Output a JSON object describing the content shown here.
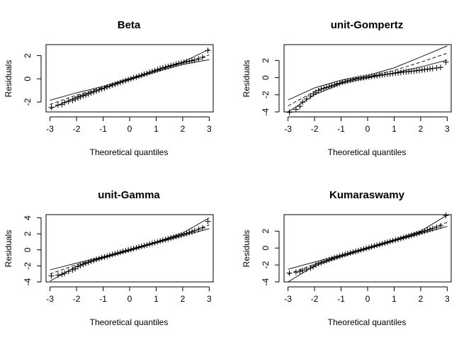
{
  "chart_data": [
    {
      "type": "scatter",
      "title": "Beta",
      "xlabel": "Theoretical quantiles",
      "ylabel": "Residuals",
      "xlim": [
        -3.15,
        3.15
      ],
      "ylim": [
        -2.85,
        2.95
      ],
      "xticks": [
        -3,
        -2,
        -1,
        0,
        1,
        2,
        3
      ],
      "yticks": [
        -2,
        0,
        2
      ],
      "marker": "+",
      "points": [
        [
          -2.95,
          -2.45
        ],
        [
          -2.7,
          -2.25
        ],
        [
          -2.55,
          -2.2
        ],
        [
          -2.45,
          -2.05
        ],
        [
          -2.3,
          -1.95
        ],
        [
          -2.15,
          -1.85
        ],
        [
          -2.05,
          -1.75
        ],
        [
          -1.95,
          -1.65
        ],
        [
          -1.85,
          -1.55
        ],
        [
          -1.75,
          -1.45
        ],
        [
          -1.65,
          -1.4
        ],
        [
          -1.55,
          -1.3
        ],
        [
          -1.45,
          -1.2
        ],
        [
          -1.35,
          -1.12
        ],
        [
          -1.25,
          -1.03
        ],
        [
          -1.15,
          -0.95
        ],
        [
          -1.05,
          -0.87
        ],
        [
          -0.95,
          -0.8
        ],
        [
          -0.85,
          -0.71
        ],
        [
          -0.75,
          -0.63
        ],
        [
          -0.65,
          -0.55
        ],
        [
          -0.55,
          -0.47
        ],
        [
          -0.45,
          -0.39
        ],
        [
          -0.35,
          -0.31
        ],
        [
          -0.25,
          -0.23
        ],
        [
          -0.15,
          -0.15
        ],
        [
          -0.05,
          -0.07
        ],
        [
          0.05,
          0.01
        ],
        [
          0.15,
          0.09
        ],
        [
          0.25,
          0.16
        ],
        [
          0.35,
          0.24
        ],
        [
          0.45,
          0.32
        ],
        [
          0.55,
          0.4
        ],
        [
          0.65,
          0.47
        ],
        [
          0.75,
          0.55
        ],
        [
          0.85,
          0.63
        ],
        [
          0.95,
          0.71
        ],
        [
          1.05,
          0.79
        ],
        [
          1.15,
          0.87
        ],
        [
          1.25,
          0.94
        ],
        [
          1.35,
          1.0
        ],
        [
          1.45,
          1.07
        ],
        [
          1.55,
          1.14
        ],
        [
          1.65,
          1.2
        ],
        [
          1.75,
          1.27
        ],
        [
          1.85,
          1.33
        ],
        [
          1.95,
          1.38
        ],
        [
          2.05,
          1.43
        ],
        [
          2.15,
          1.48
        ],
        [
          2.25,
          1.52
        ],
        [
          2.35,
          1.56
        ],
        [
          2.45,
          1.6
        ],
        [
          2.6,
          1.7
        ],
        [
          2.75,
          1.85
        ],
        [
          2.95,
          2.45
        ]
      ],
      "envelope": {
        "upper": [
          [
            -3.0,
            -1.85
          ],
          [
            -2.0,
            -1.2
          ],
          [
            -1.0,
            -0.65
          ],
          [
            0.0,
            0.05
          ],
          [
            1.0,
            0.75
          ],
          [
            2.0,
            1.45
          ],
          [
            3.0,
            2.55
          ]
        ],
        "lower": [
          [
            -3.0,
            -2.6
          ],
          [
            -2.0,
            -1.55
          ],
          [
            -1.0,
            -0.8
          ],
          [
            0.0,
            -0.1
          ],
          [
            1.0,
            0.6
          ],
          [
            2.0,
            1.25
          ],
          [
            3.0,
            1.65
          ]
        ],
        "median": [
          [
            -3.0,
            -2.2
          ],
          [
            -2.0,
            -1.4
          ],
          [
            -1.0,
            -0.72
          ],
          [
            0.0,
            -0.02
          ],
          [
            1.0,
            0.68
          ],
          [
            2.0,
            1.36
          ],
          [
            3.0,
            2.05
          ]
        ]
      }
    },
    {
      "type": "scatter",
      "title": "unit-Gompertz",
      "xlabel": "Theoretical quantiles",
      "ylabel": "Residuals",
      "xlim": [
        -3.15,
        3.15
      ],
      "ylim": [
        -4.0,
        3.85
      ],
      "xticks": [
        -3,
        -2,
        -1,
        0,
        1,
        2,
        3
      ],
      "yticks": [
        -4,
        -2,
        0,
        2
      ],
      "marker": "+",
      "points": [
        [
          -2.95,
          -4.05
        ],
        [
          -2.7,
          -3.7
        ],
        [
          -2.55,
          -3.35
        ],
        [
          -2.45,
          -2.85
        ],
        [
          -2.3,
          -2.5
        ],
        [
          -2.15,
          -2.15
        ],
        [
          -2.05,
          -1.9
        ],
        [
          -1.95,
          -1.7
        ],
        [
          -1.85,
          -1.5
        ],
        [
          -1.75,
          -1.35
        ],
        [
          -1.65,
          -1.25
        ],
        [
          -1.55,
          -1.15
        ],
        [
          -1.45,
          -1.05
        ],
        [
          -1.35,
          -0.95
        ],
        [
          -1.25,
          -0.85
        ],
        [
          -1.15,
          -0.75
        ],
        [
          -1.05,
          -0.65
        ],
        [
          -0.95,
          -0.55
        ],
        [
          -0.85,
          -0.45
        ],
        [
          -0.75,
          -0.37
        ],
        [
          -0.65,
          -0.3
        ],
        [
          -0.55,
          -0.23
        ],
        [
          -0.45,
          -0.16
        ],
        [
          -0.35,
          -0.1
        ],
        [
          -0.25,
          -0.05
        ],
        [
          -0.15,
          0.0
        ],
        [
          -0.05,
          0.05
        ],
        [
          0.05,
          0.1
        ],
        [
          0.15,
          0.15
        ],
        [
          0.25,
          0.19
        ],
        [
          0.35,
          0.24
        ],
        [
          0.45,
          0.28
        ],
        [
          0.55,
          0.32
        ],
        [
          0.65,
          0.36
        ],
        [
          0.75,
          0.4
        ],
        [
          0.85,
          0.44
        ],
        [
          0.95,
          0.48
        ],
        [
          1.05,
          0.52
        ],
        [
          1.15,
          0.56
        ],
        [
          1.25,
          0.6
        ],
        [
          1.35,
          0.64
        ],
        [
          1.45,
          0.68
        ],
        [
          1.55,
          0.71
        ],
        [
          1.65,
          0.75
        ],
        [
          1.75,
          0.78
        ],
        [
          1.85,
          0.82
        ],
        [
          1.95,
          0.86
        ],
        [
          2.05,
          0.9
        ],
        [
          2.15,
          0.94
        ],
        [
          2.25,
          0.98
        ],
        [
          2.35,
          1.02
        ],
        [
          2.45,
          1.06
        ],
        [
          2.6,
          1.12
        ],
        [
          2.75,
          1.2
        ],
        [
          2.95,
          1.8
        ]
      ],
      "envelope": {
        "upper": [
          [
            -3.0,
            -2.6
          ],
          [
            -2.0,
            -1.2
          ],
          [
            -1.0,
            -0.3
          ],
          [
            0.0,
            0.25
          ],
          [
            1.0,
            1.15
          ],
          [
            2.0,
            2.4
          ],
          [
            3.0,
            3.7
          ]
        ],
        "lower": [
          [
            -3.0,
            -4.0
          ],
          [
            -2.0,
            -2.0
          ],
          [
            -1.0,
            -0.7
          ],
          [
            0.0,
            -0.05
          ],
          [
            1.0,
            0.55
          ],
          [
            2.0,
            1.25
          ],
          [
            3.0,
            2.05
          ]
        ],
        "median": [
          [
            -3.0,
            -3.3
          ],
          [
            -2.0,
            -1.6
          ],
          [
            -1.0,
            -0.5
          ],
          [
            0.0,
            0.1
          ],
          [
            1.0,
            0.85
          ],
          [
            2.0,
            1.8
          ],
          [
            3.0,
            2.85
          ]
        ]
      }
    },
    {
      "type": "scatter",
      "title": "unit-Gamma",
      "xlabel": "Theoretical quantiles",
      "ylabel": "Residuals",
      "xlim": [
        -3.15,
        3.15
      ],
      "ylim": [
        -4.0,
        4.4
      ],
      "xticks": [
        -3,
        -2,
        -1,
        0,
        1,
        2,
        3
      ],
      "yticks": [
        -4,
        -2,
        0,
        2,
        4
      ],
      "marker": "+",
      "points": [
        [
          -2.95,
          -3.25
        ],
        [
          -2.7,
          -3.15
        ],
        [
          -2.55,
          -3.05
        ],
        [
          -2.45,
          -2.9
        ],
        [
          -2.3,
          -2.7
        ],
        [
          -2.15,
          -2.5
        ],
        [
          -2.05,
          -2.35
        ],
        [
          -1.95,
          -2.1
        ],
        [
          -1.85,
          -1.95
        ],
        [
          -1.75,
          -1.8
        ],
        [
          -1.65,
          -1.68
        ],
        [
          -1.55,
          -1.55
        ],
        [
          -1.45,
          -1.43
        ],
        [
          -1.35,
          -1.32
        ],
        [
          -1.25,
          -1.2
        ],
        [
          -1.15,
          -1.1
        ],
        [
          -1.05,
          -0.98
        ],
        [
          -0.95,
          -0.88
        ],
        [
          -0.85,
          -0.78
        ],
        [
          -0.75,
          -0.68
        ],
        [
          -0.65,
          -0.58
        ],
        [
          -0.55,
          -0.48
        ],
        [
          -0.45,
          -0.39
        ],
        [
          -0.35,
          -0.3
        ],
        [
          -0.25,
          -0.2
        ],
        [
          -0.15,
          -0.11
        ],
        [
          -0.05,
          -0.02
        ],
        [
          0.05,
          0.07
        ],
        [
          0.15,
          0.16
        ],
        [
          0.25,
          0.25
        ],
        [
          0.35,
          0.35
        ],
        [
          0.45,
          0.44
        ],
        [
          0.55,
          0.53
        ],
        [
          0.65,
          0.62
        ],
        [
          0.75,
          0.72
        ],
        [
          0.85,
          0.81
        ],
        [
          0.95,
          0.91
        ],
        [
          1.05,
          1.0
        ],
        [
          1.15,
          1.1
        ],
        [
          1.25,
          1.19
        ],
        [
          1.35,
          1.29
        ],
        [
          1.45,
          1.38
        ],
        [
          1.55,
          1.48
        ],
        [
          1.65,
          1.57
        ],
        [
          1.75,
          1.67
        ],
        [
          1.85,
          1.76
        ],
        [
          1.95,
          1.86
        ],
        [
          2.05,
          1.96
        ],
        [
          2.15,
          2.06
        ],
        [
          2.25,
          2.16
        ],
        [
          2.35,
          2.27
        ],
        [
          2.45,
          2.38
        ],
        [
          2.6,
          2.55
        ],
        [
          2.75,
          2.75
        ],
        [
          2.95,
          3.55
        ]
      ],
      "envelope": {
        "upper": [
          [
            -3.0,
            -2.5
          ],
          [
            -2.0,
            -1.65
          ],
          [
            -1.0,
            -0.85
          ],
          [
            0.0,
            0.08
          ],
          [
            1.0,
            1.0
          ],
          [
            2.0,
            2.1
          ],
          [
            3.0,
            4.0
          ]
        ],
        "lower": [
          [
            -3.0,
            -3.9
          ],
          [
            -2.0,
            -2.05
          ],
          [
            -1.0,
            -1.05
          ],
          [
            0.0,
            -0.12
          ],
          [
            1.0,
            0.85
          ],
          [
            2.0,
            1.75
          ],
          [
            3.0,
            2.65
          ]
        ],
        "median": [
          [
            -3.0,
            -3.0
          ],
          [
            -2.0,
            -1.85
          ],
          [
            -1.0,
            -0.95
          ],
          [
            0.0,
            -0.02
          ],
          [
            1.0,
            0.92
          ],
          [
            2.0,
            1.92
          ],
          [
            3.0,
            3.1
          ]
        ]
      }
    },
    {
      "type": "scatter",
      "title": "Kumaraswamy",
      "xlabel": "Theoretical quantiles",
      "ylabel": "Residuals",
      "xlim": [
        -3.15,
        3.15
      ],
      "ylim": [
        -4.0,
        3.95
      ],
      "xticks": [
        -3,
        -2,
        -1,
        0,
        1,
        2,
        3
      ],
      "yticks": [
        -4,
        -2,
        0,
        2
      ],
      "marker": "+",
      "points": [
        [
          -2.95,
          -2.95
        ],
        [
          -2.7,
          -2.85
        ],
        [
          -2.55,
          -2.75
        ],
        [
          -2.45,
          -2.65
        ],
        [
          -2.3,
          -2.5
        ],
        [
          -2.15,
          -2.35
        ],
        [
          -2.05,
          -2.2
        ],
        [
          -1.95,
          -2.0
        ],
        [
          -1.85,
          -1.85
        ],
        [
          -1.75,
          -1.72
        ],
        [
          -1.65,
          -1.6
        ],
        [
          -1.55,
          -1.48
        ],
        [
          -1.45,
          -1.37
        ],
        [
          -1.35,
          -1.26
        ],
        [
          -1.25,
          -1.15
        ],
        [
          -1.15,
          -1.05
        ],
        [
          -1.05,
          -0.95
        ],
        [
          -0.95,
          -0.85
        ],
        [
          -0.85,
          -0.76
        ],
        [
          -0.75,
          -0.66
        ],
        [
          -0.65,
          -0.57
        ],
        [
          -0.55,
          -0.48
        ],
        [
          -0.45,
          -0.39
        ],
        [
          -0.35,
          -0.3
        ],
        [
          -0.25,
          -0.21
        ],
        [
          -0.15,
          -0.12
        ],
        [
          -0.05,
          -0.03
        ],
        [
          0.05,
          0.06
        ],
        [
          0.15,
          0.15
        ],
        [
          0.25,
          0.24
        ],
        [
          0.35,
          0.33
        ],
        [
          0.45,
          0.42
        ],
        [
          0.55,
          0.51
        ],
        [
          0.65,
          0.6
        ],
        [
          0.75,
          0.69
        ],
        [
          0.85,
          0.78
        ],
        [
          0.95,
          0.87
        ],
        [
          1.05,
          0.96
        ],
        [
          1.15,
          1.05
        ],
        [
          1.25,
          1.14
        ],
        [
          1.35,
          1.23
        ],
        [
          1.45,
          1.32
        ],
        [
          1.55,
          1.41
        ],
        [
          1.65,
          1.5
        ],
        [
          1.75,
          1.6
        ],
        [
          1.85,
          1.7
        ],
        [
          1.95,
          1.8
        ],
        [
          2.05,
          1.9
        ],
        [
          2.15,
          2.0
        ],
        [
          2.25,
          2.1
        ],
        [
          2.35,
          2.2
        ],
        [
          2.45,
          2.3
        ],
        [
          2.6,
          2.45
        ],
        [
          2.75,
          2.62
        ],
        [
          2.95,
          3.85
        ]
      ],
      "envelope": {
        "upper": [
          [
            -3.0,
            -2.5
          ],
          [
            -2.0,
            -1.65
          ],
          [
            -1.0,
            -0.82
          ],
          [
            0.0,
            0.08
          ],
          [
            1.0,
            1.0
          ],
          [
            2.0,
            2.0
          ],
          [
            3.0,
            3.9
          ]
        ],
        "lower": [
          [
            -3.0,
            -4.0
          ],
          [
            -2.0,
            -2.1
          ],
          [
            -1.0,
            -1.05
          ],
          [
            0.0,
            -0.12
          ],
          [
            1.0,
            0.82
          ],
          [
            2.0,
            1.7
          ],
          [
            3.0,
            2.55
          ]
        ],
        "median": [
          [
            -3.0,
            -3.1
          ],
          [
            -2.0,
            -1.9
          ],
          [
            -1.0,
            -0.93
          ],
          [
            0.0,
            -0.02
          ],
          [
            1.0,
            0.91
          ],
          [
            2.0,
            1.85
          ],
          [
            3.0,
            3.05
          ]
        ]
      }
    }
  ]
}
